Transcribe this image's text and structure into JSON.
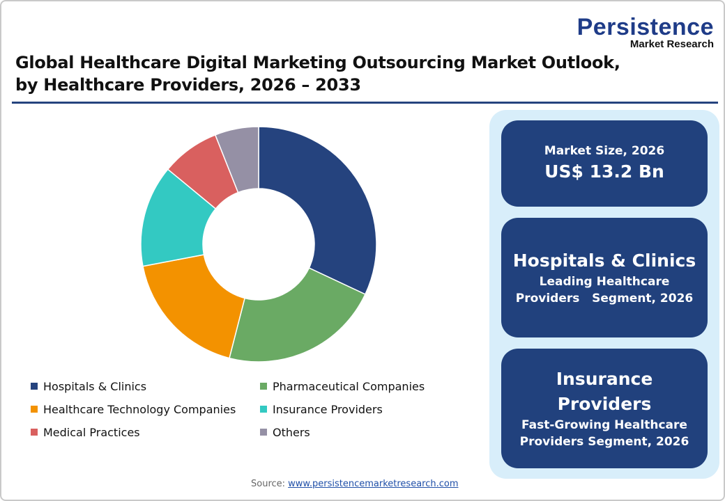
{
  "logo": {
    "line1": "Persistence",
    "line2": "Market Research"
  },
  "title": {
    "line1": "Global Healthcare Digital Marketing Outsourcing Market Outlook,",
    "line2": "by Healthcare Providers, 2026 – 2033"
  },
  "chart_data": {
    "type": "pie",
    "donut": true,
    "categories": [
      "Hospitals & Clinics",
      "Pharmaceutical Companies",
      "Healthcare Technology Companies",
      "Insurance Providers",
      "Medical Practices",
      "Others"
    ],
    "values": [
      32,
      22,
      18,
      14,
      8,
      6
    ],
    "unit": "%",
    "colors": [
      "#25437e",
      "#6aaa64",
      "#f39200",
      "#33c9c2",
      "#d9605f",
      "#9590a5"
    ],
    "legend_position": "bottom"
  },
  "panel": {
    "card1": {
      "label": "Market Size, 2026",
      "value": "US$ 13.2 Bn"
    },
    "card2": {
      "title": "Hospitals & Clinics",
      "line1": "Leading Healthcare",
      "line2": "Providers   Segment, 2026"
    },
    "card3": {
      "title1": "Insurance",
      "title2": "Providers",
      "line1": "Fast-Growing Healthcare",
      "line2": "Providers Segment, 2026"
    }
  },
  "source": {
    "label": "Source: ",
    "link": "www.persistencemarketresearch.com"
  }
}
